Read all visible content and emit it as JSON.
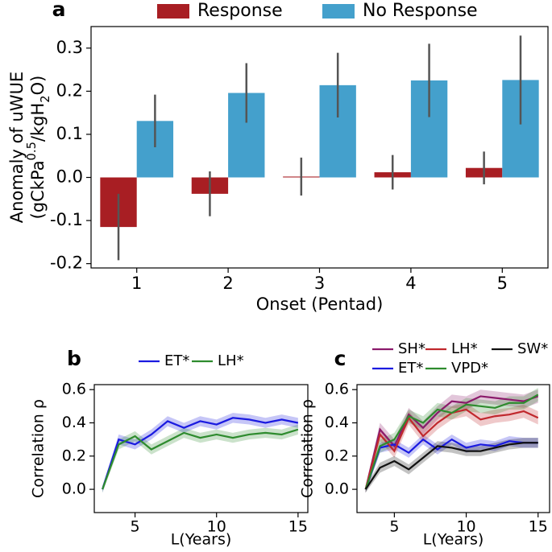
{
  "chart_data": [
    {
      "type": "bar",
      "panel": "a",
      "xlabel": "Onset (Pentad)",
      "ylabel": "Anomaly of uWUE",
      "ylabel_units": [
        "(gCkPa",
        "0.5",
        "/kgH",
        "2",
        "O)"
      ],
      "categories": [
        "1",
        "2",
        "3",
        "4",
        "5"
      ],
      "series": [
        {
          "name": "Response",
          "color": "#a81e23",
          "values": [
            -0.115,
            -0.038,
            0.002,
            0.012,
            0.022
          ],
          "errors": [
            0.077,
            0.052,
            0.044,
            0.04,
            0.038
          ]
        },
        {
          "name": "No Response",
          "color": "#44a0cc",
          "values": [
            0.131,
            0.196,
            0.214,
            0.225,
            0.226
          ],
          "errors": [
            0.061,
            0.069,
            0.075,
            0.085,
            0.103
          ]
        }
      ],
      "ylim": [
        -0.21,
        0.35
      ],
      "yticks": [
        -0.2,
        -0.1,
        {
          "value": 0,
          "label": "0.0"
        },
        0.1,
        0.2,
        0.3
      ]
    },
    {
      "type": "line",
      "panel": "b",
      "xlabel": "L(Years)",
      "ylabel": "Correlation ρ",
      "x": [
        3,
        4,
        5,
        6,
        7,
        8,
        9,
        10,
        11,
        12,
        13,
        14,
        15
      ],
      "series": [
        {
          "name": "ET*",
          "color": "#1a1ae0",
          "values": [
            0.0,
            0.3,
            0.27,
            0.33,
            0.41,
            0.37,
            0.41,
            0.39,
            0.43,
            0.42,
            0.4,
            0.42,
            0.4
          ],
          "errors": [
            0.02,
            0.03,
            0.03,
            0.03,
            0.03,
            0.03,
            0.03,
            0.03,
            0.03,
            0.03,
            0.03,
            0.03,
            0.03
          ]
        },
        {
          "name": "LH*",
          "color": "#2e8b2e",
          "values": [
            0.0,
            0.27,
            0.32,
            0.24,
            0.29,
            0.34,
            0.31,
            0.33,
            0.31,
            0.33,
            0.34,
            0.33,
            0.36
          ],
          "errors": [
            0.02,
            0.03,
            0.03,
            0.03,
            0.03,
            0.03,
            0.03,
            0.03,
            0.03,
            0.03,
            0.03,
            0.03,
            0.03
          ]
        }
      ],
      "xlim": [
        2.5,
        15.6
      ],
      "xticks": [
        5,
        10,
        15
      ],
      "ylim": [
        -0.14,
        0.63
      ],
      "yticks": [
        {
          "value": 0,
          "label": "0.0"
        },
        0.2,
        0.4,
        0.6
      ]
    },
    {
      "type": "line",
      "panel": "c",
      "xlabel": "L(Years)",
      "ylabel": "Correlation ρ",
      "x": [
        3,
        4,
        5,
        6,
        7,
        8,
        9,
        10,
        11,
        12,
        13,
        14,
        15
      ],
      "series": [
        {
          "name": "SH*",
          "color": "#8b1a6b",
          "values": [
            0.0,
            0.36,
            0.26,
            0.45,
            0.37,
            0.46,
            0.53,
            0.52,
            0.56,
            0.55,
            0.54,
            0.53,
            0.56
          ],
          "errors": [
            0.02,
            0.04,
            0.04,
            0.04,
            0.04,
            0.04,
            0.04,
            0.04,
            0.04,
            0.04,
            0.04,
            0.04,
            0.04
          ]
        },
        {
          "name": "ET*",
          "color": "#1a1ae0",
          "values": [
            0.0,
            0.25,
            0.27,
            0.22,
            0.3,
            0.24,
            0.3,
            0.25,
            0.27,
            0.26,
            0.29,
            0.28,
            0.28
          ],
          "errors": [
            0.02,
            0.03,
            0.03,
            0.03,
            0.03,
            0.03,
            0.03,
            0.03,
            0.03,
            0.03,
            0.03,
            0.03,
            0.03
          ]
        },
        {
          "name": "LH*",
          "color": "#c0282d",
          "values": [
            0.0,
            0.33,
            0.23,
            0.43,
            0.32,
            0.4,
            0.46,
            0.48,
            0.42,
            0.44,
            0.45,
            0.47,
            0.43
          ],
          "errors": [
            0.02,
            0.04,
            0.04,
            0.04,
            0.04,
            0.04,
            0.04,
            0.04,
            0.04,
            0.04,
            0.04,
            0.04,
            0.04
          ]
        },
        {
          "name": "VPD*",
          "color": "#2e8b2e",
          "values": [
            0.0,
            0.26,
            0.3,
            0.44,
            0.4,
            0.48,
            0.46,
            0.51,
            0.5,
            0.49,
            0.52,
            0.52,
            0.57
          ],
          "errors": [
            0.02,
            0.04,
            0.04,
            0.04,
            0.04,
            0.04,
            0.04,
            0.04,
            0.04,
            0.04,
            0.04,
            0.04,
            0.04
          ]
        },
        {
          "name": "SW*",
          "color": "#111111",
          "values": [
            0.0,
            0.13,
            0.17,
            0.12,
            0.19,
            0.26,
            0.25,
            0.23,
            0.23,
            0.25,
            0.27,
            0.28,
            0.28
          ],
          "errors": [
            0.02,
            0.03,
            0.03,
            0.03,
            0.03,
            0.03,
            0.03,
            0.03,
            0.03,
            0.03,
            0.03,
            0.03,
            0.03
          ]
        }
      ],
      "xlim": [
        2.4,
        15.8
      ],
      "xticks": [
        5,
        10,
        15
      ],
      "ylim": [
        -0.14,
        0.63
      ],
      "yticks": [
        {
          "value": 0,
          "label": "0.0"
        },
        0.2,
        0.4,
        0.6
      ]
    }
  ]
}
